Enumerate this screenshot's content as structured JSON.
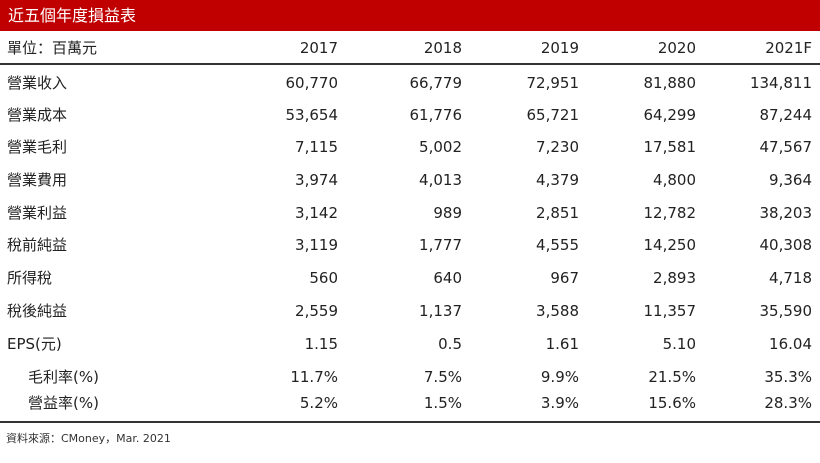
{
  "title": "近五個年度損益表",
  "header": {
    "unit_label": "單位：百萬元",
    "years": [
      "2017",
      "2018",
      "2019",
      "2020",
      "2021F"
    ]
  },
  "rows": [
    {
      "label": "營業收入",
      "values": [
        "60,770",
        "66,779",
        "72,951",
        "81,880",
        "134,811"
      ]
    },
    {
      "label": "營業成本",
      "values": [
        "53,654",
        "61,776",
        "65,721",
        "64,299",
        "87,244"
      ]
    },
    {
      "label": "營業毛利",
      "values": [
        "7,115",
        "5,002",
        "7,230",
        "17,581",
        "47,567"
      ]
    },
    {
      "label": "營業費用",
      "values": [
        "3,974",
        "4,013",
        "4,379",
        "4,800",
        "9,364"
      ]
    },
    {
      "label": "營業利益",
      "values": [
        "3,142",
        "989",
        "2,851",
        "12,782",
        "38,203"
      ]
    },
    {
      "label": "稅前純益",
      "values": [
        "3,119",
        "1,777",
        "4,555",
        "14,250",
        "40,308"
      ]
    },
    {
      "label": "所得稅",
      "values": [
        "560",
        "640",
        "967",
        "2,893",
        "4,718"
      ]
    },
    {
      "label": "稅後純益",
      "values": [
        "2,559",
        "1,137",
        "3,588",
        "11,357",
        "35,590"
      ]
    },
    {
      "label": "EPS(元)",
      "values": [
        "1.15",
        "0.5",
        "1.61",
        "5.10",
        "16.04"
      ]
    },
    {
      "label": "毛利率(%)",
      "values": [
        "11.7%",
        "7.5%",
        "9.9%",
        "21.5%",
        "35.3%"
      ]
    },
    {
      "label": "營益率(%)",
      "values": [
        "5.2%",
        "1.5%",
        "3.9%",
        "15.6%",
        "28.3%"
      ]
    }
  ],
  "source": "資料來源：CMoney，Mar. 2021"
}
